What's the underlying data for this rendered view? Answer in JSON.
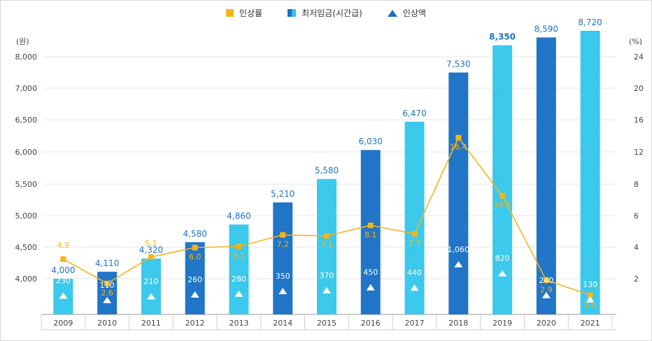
{
  "legend": {
    "rate_label": "인상률",
    "wage_label": "최저임금(시간급)",
    "increase_label": "인상액"
  },
  "colors": {
    "bar_dark": "#1a6fc2",
    "bar_light": "#2fc4ea",
    "rate_line": "#f5b41a",
    "value_label": "#1f72c4"
  },
  "chart_data": {
    "type": "bar",
    "categories": [
      "2009",
      "2010",
      "2011",
      "2012",
      "2013",
      "2014",
      "2015",
      "2016",
      "2017",
      "2018",
      "2019",
      "2020",
      "2021"
    ],
    "series": [
      {
        "name": "최저임금(시간급)",
        "values": [
          4000,
          4110,
          4320,
          4580,
          4860,
          5210,
          5580,
          6030,
          6470,
          7530,
          8350,
          8590,
          8720
        ],
        "value_labels": [
          "4,000",
          "4,110",
          "4,320",
          "4,580",
          "4,860",
          "5,210",
          "5,580",
          "6,030",
          "6,470",
          "7,530",
          "8,350",
          "8,590",
          "8,720"
        ]
      },
      {
        "name": "인상액",
        "values": [
          230,
          110,
          210,
          260,
          280,
          350,
          370,
          450,
          440,
          1060,
          820,
          240,
          130
        ],
        "value_labels": [
          "230",
          "110",
          "210",
          "260",
          "280",
          "350",
          "370",
          "450",
          "440",
          "1,060",
          "820",
          "240",
          "130"
        ]
      },
      {
        "name": "인상률",
        "values": [
          4.9,
          2.6,
          5.1,
          6.0,
          6.1,
          7.2,
          7.1,
          8.1,
          7.3,
          16.4,
          10.9,
          2.9,
          1.5
        ],
        "value_labels": [
          "4.9",
          "2.6",
          "5.1",
          "6.0",
          "6.1",
          "7.2",
          "7.1",
          "8.1",
          "7.3",
          "16.4",
          "10.9",
          "2.9",
          "1.5"
        ]
      }
    ],
    "y_left": {
      "unit": "(원)",
      "ticks": [
        "4,000",
        "4,500",
        "5,000",
        "5,500",
        "6,000",
        "6,500",
        "7,000",
        "8,000"
      ]
    },
    "y_right": {
      "unit": "(%)",
      "ticks": [
        "2",
        "4",
        "6",
        "8",
        "12",
        "16",
        "20",
        "24",
        "24"
      ]
    },
    "grid": true,
    "legend_position": "top-center"
  }
}
